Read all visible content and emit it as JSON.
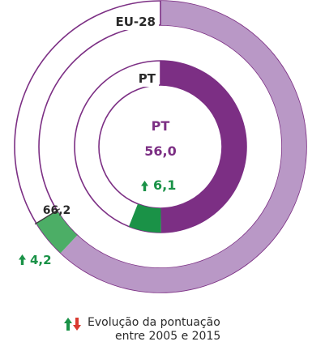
{
  "chart_data": {
    "type": "donut",
    "unit_scale_max": 100,
    "colors": {
      "pt": "#7c2f84",
      "eu28": "#b998c6",
      "growth": "#1a9247",
      "growth_light": "#4cae66",
      "outline": "#7c2f84",
      "decline": "#d93a30",
      "text": "#2a2a2a"
    },
    "center": {
      "label": "PT",
      "value_text": "56,0",
      "delta_text": "6,1"
    },
    "rings": [
      {
        "name": "EU-28",
        "label": "EU-28",
        "value": 66.2,
        "value_text": "66,2",
        "delta": 4.2,
        "delta_text": "4,2",
        "delta_direction": "up"
      },
      {
        "name": "PT",
        "label": "PT",
        "value": 56.0,
        "value_text": "56,0",
        "delta": 6.1,
        "delta_text": "6,1",
        "delta_direction": "up"
      }
    ]
  },
  "legend": {
    "line1": "Evolução da pontuação",
    "line2": "entre 2005 e 2015"
  }
}
